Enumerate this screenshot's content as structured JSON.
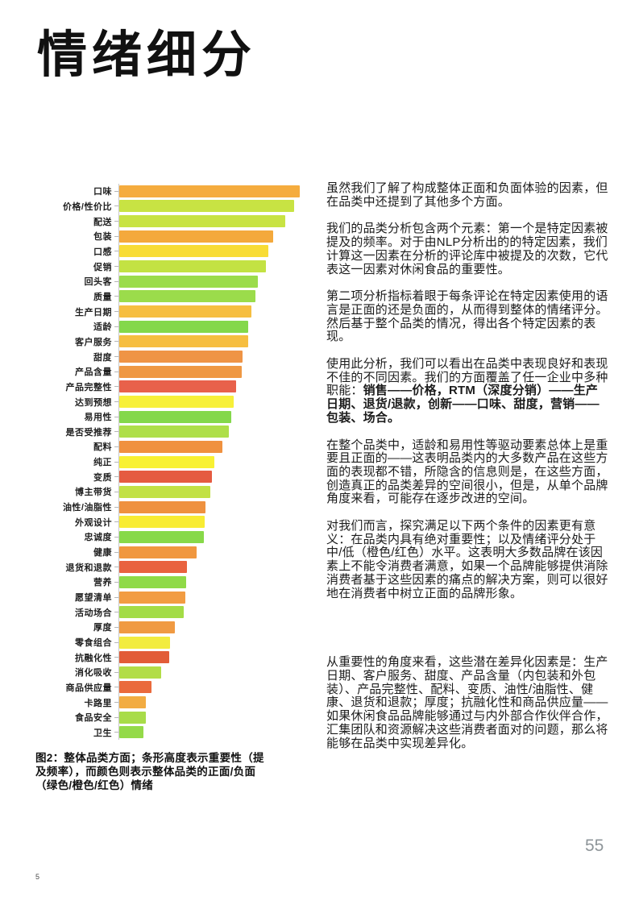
{
  "page": {
    "title": "情绪细分",
    "page_number": "55",
    "footer_note": "5"
  },
  "chart_data": {
    "type": "bar",
    "orientation": "horizontal",
    "title": "",
    "xlabel": "",
    "ylabel": "",
    "axis_range_percent_of_max": [
      0,
      100
    ],
    "grid": false,
    "legend_note": "条形高度（长度）=重要性（提及频率），颜色=情绪：绿色=正面 / 橙色=中性偏负 / 红色=负面",
    "categories": [
      "口味",
      "价格/性价比",
      "配送",
      "包装",
      "口感",
      "促销",
      "回头客",
      "质量",
      "生产日期",
      "适龄",
      "客户服务",
      "甜度",
      "产品含量",
      "产品完整性",
      "达到预想",
      "易用性",
      "是否受推荐",
      "配料",
      "纯正",
      "变质",
      "博主带货",
      "油性/油脂性",
      "外观设计",
      "忠诚度",
      "健康",
      "退货和退款",
      "营养",
      "愿望清单",
      "活动场合",
      "厚度",
      "零食组合",
      "抗融化性",
      "消化吸收",
      "商品供应量",
      "卡路里",
      "食品安全",
      "卫生"
    ],
    "values": [
      100,
      96.9,
      92.0,
      85.3,
      82.6,
      81.3,
      76.6,
      75.3,
      73.3,
      71.3,
      71.3,
      68.1,
      68.0,
      64.7,
      63.4,
      62.1,
      60.8,
      57.0,
      52.7,
      51.2,
      50.4,
      47.9,
      47.3,
      46.9,
      43.0,
      37.5,
      37.1,
      36.6,
      35.7,
      30.6,
      28.3,
      27.8,
      23.2,
      17.9,
      14.9,
      14.7,
      13.4
    ],
    "colors": [
      "#F5AC3E",
      "#C8E343",
      "#C8E343",
      "#F4A93C",
      "#F8DC36",
      "#C3E243",
      "#9BDC4B",
      "#9BDC4B",
      "#F6BE40",
      "#84D84B",
      "#F6BE40",
      "#EF9445",
      "#EF9843",
      "#E8614B",
      "#F7F039",
      "#84D84B",
      "#AEDF49",
      "#F0913F",
      "#F8F133",
      "#E55B41",
      "#C2E145",
      "#EF913F",
      "#F8EC33",
      "#87D949",
      "#F0973F",
      "#E9623F",
      "#8FDA47",
      "#F29C42",
      "#A3DC46",
      "#F09A42",
      "#F2EC3F",
      "#E25C38",
      "#B2DD47",
      "#EA6A3C",
      "#F2AC42",
      "#A8DC49",
      "#94DA49"
    ],
    "sentiment_palette": {
      "positive_green": "#8FDA47",
      "neutral_yellow": "#F7F039",
      "mid_orange": "#F0973F",
      "negative_red": "#E8614B"
    }
  },
  "caption": "图2：整体品类方面；条形高度表示重要性（提及频率），而颜色则表示整体品类的正面/负面（绿色/橙色/红色）情绪",
  "body": {
    "p1": "虽然我们了解了构成整体正面和负面体验的因素，但在品类中还提到了其他多个方面。",
    "p2": "我们的品类分析包含两个元素：第一个是特定因素被提及的频率。对于由NLP分析出的的特定因素，我们计算这一因素在分析的评论库中被提及的次数，它代表这一因素对休闲食品的重要性。",
    "p3": "第二项分析指标着眼于每条评论在特定因素使用的语言是正面的还是负面的，从而得到整体的情绪评分。然后基于整个品类的情况，得出各个特定因素的表现。",
    "p4_normal": "使用此分析，我们可以看出在品类中表现良好和表现不佳的不同因素。我们的方面覆盖了任一企业中多种职能：",
    "p4_bold": "销售——价格，RTM（深度分销）——生产日期、退货/退款，创新——口味、甜度，营销——包装、场合。",
    "p5": "在整个品类中，适龄和易用性等驱动要素总体上是重要且正面的——这表明品类内的大多数产品在这些方面的表现都不错，所隐含的信息则是，在这些方面，创造真正的品类差异的空间很小，但是，从单个品牌角度来看，可能存在逐步改进的空间。",
    "p6": "对我们而言，探究满足以下两个条件的因素更有意义：在品类内具有绝对重要性；以及情绪评分处于中/低（橙色/红色）水平。这表明大多数品牌在该因素上不能令消费者满意，如果一个品牌能够提供消除消费者基于这些因素的痛点的解决方案，则可以很好地在消费者中树立正面的品牌形象。",
    "p7": "从重要性的角度来看，这些潜在差异化因素是：生产日期、客户服务、甜度、产品含量（内包装和外包装）、产品完整性、配料、变质、油性/油脂性、健康、退货和退款；厚度；抗融化性和商品供应量——如果休闲食品品牌能够通过与内外部合作伙伴合作，汇集团队和资源解决这些消费者面对的问题，那么将能够在品类中实现差异化。"
  }
}
